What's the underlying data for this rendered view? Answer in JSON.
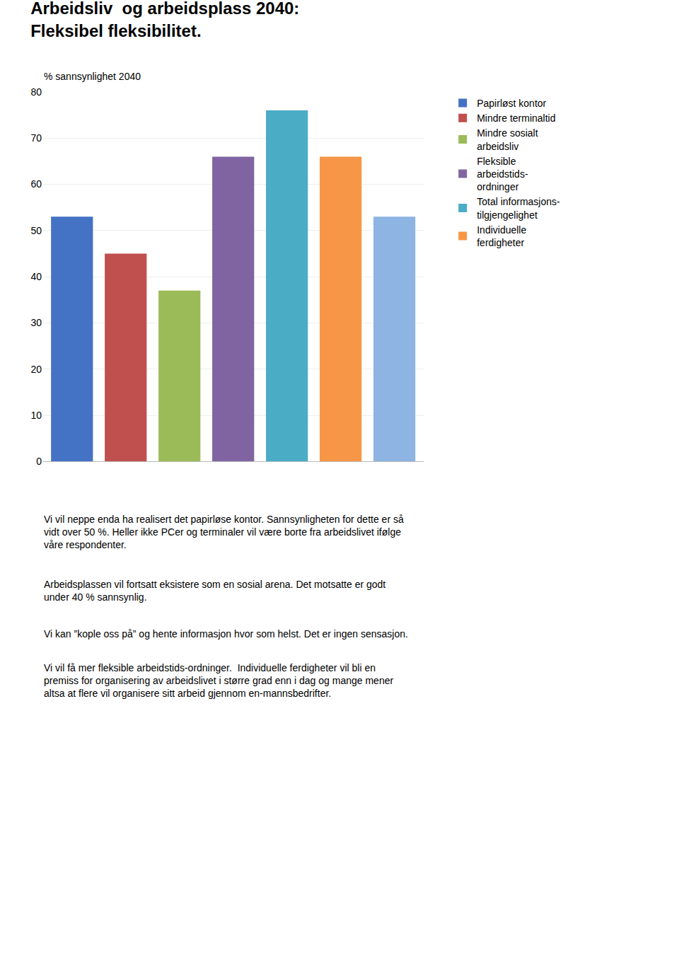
{
  "chart_data": {
    "type": "bar",
    "title": "Arbeidsliv  og arbeidsplass 2040:\nFleksibel fleksibilitet.",
    "ylabel": "% sannsynlighet 2040",
    "categories": [
      null,
      null,
      null,
      null,
      null,
      null,
      null
    ],
    "series": [
      {
        "name": "Papirløst kontor",
        "color": "#4472C4",
        "values": [
          53,
          null,
          null,
          null,
          null,
          null,
          null
        ]
      },
      {
        "name": "Mindre terminaltid",
        "color": "#C0504D",
        "values": [
          null,
          45,
          null,
          null,
          null,
          null,
          null
        ]
      },
      {
        "name": "Mindre sosialt\narbeidsliv",
        "color": "#9BBB59",
        "values": [
          null,
          null,
          37,
          null,
          null,
          null,
          null
        ]
      },
      {
        "name": "Fleksible\narbeidstids-\nordninger",
        "color": "#8064A2",
        "values": [
          null,
          null,
          null,
          66,
          null,
          null,
          null
        ]
      },
      {
        "name": "Total informasjons-\ntilgjengelighet",
        "color": "#4BACC6",
        "values": [
          null,
          null,
          null,
          null,
          76,
          null,
          null
        ]
      },
      {
        "name": "Individuelle\nferdigheter",
        "color": "#F79646",
        "values": [
          null,
          null,
          null,
          null,
          null,
          66,
          null
        ]
      },
      {
        "color": "#8DB4E2",
        "values": [
          null,
          null,
          null,
          null,
          null,
          null,
          53
        ]
      }
    ],
    "ylim": [
      0,
      80
    ],
    "yticks": [
      0,
      10,
      20,
      30,
      40,
      50,
      60,
      70,
      80
    ],
    "grid": true,
    "legend": "right",
    "tick_labels": "y",
    "annotations": [
      "Vi vil neppe enda ha realisert det papirløse kontor. Sannsynligheten for dette er så\nvidt over 50 %. Heller ikke PCer og terminaler vil være borte fra arbeidslivet ifølge\nvåre respondenter.",
      "Arbeidsplassen vil fortsatt eksistere som en sosial arena. Det motsatte er godt\nunder 40 % sannsynlig.",
      "Vi kan ”kople oss på” og hente informasjon hvor som helst. Det er ingen sensasjon.",
      "Vi vil få mer fleksible arbeidstids-ordninger.  Individuelle ferdigheter vil bli en\npremiss for organisering av arbeidslivet i større grad enn i dag og mange mener\naltsa at flere vil organisere sitt arbeid gjennom en-mannsbedrifter."
    ]
  }
}
